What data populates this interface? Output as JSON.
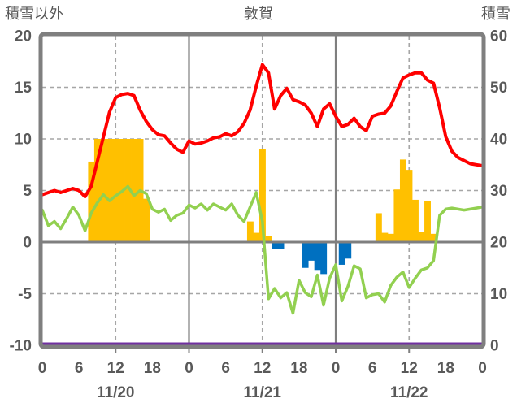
{
  "header": {
    "left_axis_title": "積雪以外",
    "title": "敦賀",
    "right_axis_title": "積雪"
  },
  "chart_data": {
    "type": "line+bar",
    "title": "敦賀",
    "x_unit": "hour",
    "x_range": [
      0,
      72
    ],
    "grid_on": true,
    "hour_tick_hours": [
      0,
      6,
      12,
      18,
      24,
      30,
      36,
      42,
      48,
      54,
      60,
      66,
      72
    ],
    "hour_tick_labels": [
      "0",
      "6",
      "12",
      "18",
      "0",
      "6",
      "12",
      "18",
      "0",
      "6",
      "12",
      "18",
      "0"
    ],
    "day_labels": [
      {
        "hour": 12,
        "label": "11/20"
      },
      {
        "hour": 36,
        "label": "11/21"
      },
      {
        "hour": 60,
        "label": "11/22"
      }
    ],
    "left_axis": {
      "title": "積雪以外",
      "range": [
        -10,
        20
      ],
      "ticks": [
        20,
        15,
        10,
        5,
        0,
        -5,
        -10
      ]
    },
    "right_axis": {
      "title": "積雪",
      "range": [
        0,
        60
      ],
      "ticks": [
        60,
        50,
        40,
        30,
        20,
        10,
        0
      ]
    },
    "gridlines": {
      "h_dashed_values": [
        15,
        10,
        5,
        -5
      ],
      "zero_line_value": 0,
      "v_dashed_hours": [
        12,
        36,
        60
      ],
      "v_solid_hours": [
        24,
        48
      ],
      "bottom_tick_hours": [
        12,
        24,
        36,
        48,
        60
      ]
    },
    "colors": {
      "red_line": "#FF0000",
      "green_line": "#92D050",
      "orange_bars": "#FFC000",
      "blue_bars": "#0070C0",
      "purple_line": "#7030A0",
      "axis": "#7F7F7F",
      "grid": "#A6A6A6",
      "text": "#595959"
    },
    "series": [
      {
        "name": "red-temperature-line",
        "type": "line",
        "axis": "left",
        "color": "#FF0000",
        "width": 4,
        "values": [
          4.6,
          4.8,
          5.0,
          4.8,
          5.0,
          5.2,
          5.0,
          4.4,
          5.4,
          7.8,
          10.2,
          12.6,
          14.0,
          14.3,
          14.4,
          14.2,
          12.8,
          11.7,
          10.9,
          10.4,
          10.3,
          9.6,
          9.0,
          8.7,
          9.8,
          9.5,
          9.6,
          9.8,
          10.1,
          10.2,
          10.5,
          10.3,
          10.7,
          11.5,
          12.8,
          15.1,
          17.2,
          16.4,
          12.9,
          14.2,
          14.9,
          13.8,
          13.6,
          13.3,
          12.5,
          11.2,
          12.9,
          13.4,
          12.2,
          11.2,
          11.4,
          12.0,
          11.2,
          10.8,
          12.2,
          12.4,
          12.5,
          13.2,
          14.6,
          15.9,
          16.2,
          16.4,
          16.4,
          15.7,
          15.4,
          13.0,
          10.2,
          8.8,
          8.2,
          7.9,
          7.6,
          7.5,
          7.4
        ]
      },
      {
        "name": "green-line",
        "type": "line",
        "axis": "left",
        "color": "#92D050",
        "width": 3.5,
        "values": [
          3.1,
          1.6,
          2.0,
          1.3,
          2.3,
          3.4,
          2.6,
          1.1,
          2.8,
          3.8,
          4.6,
          4.0,
          4.5,
          4.9,
          5.4,
          4.5,
          5.0,
          4.7,
          3.2,
          2.9,
          3.2,
          2.1,
          2.6,
          2.8,
          3.6,
          3.3,
          3.7,
          3.1,
          3.7,
          3.4,
          3.1,
          3.7,
          2.6,
          2.0,
          3.4,
          4.8,
          2.0,
          -5.5,
          -4.5,
          -5.4,
          -4.9,
          -6.9,
          -3.7,
          -4.9,
          -5.3,
          -3.2,
          -6.1,
          -3.5,
          -2.2,
          -5.7,
          -4.3,
          -2.3,
          -2.6,
          -5.4,
          -5.1,
          -5.0,
          -5.8,
          -4.2,
          -3.4,
          -2.9,
          -4.4,
          -3.5,
          -2.7,
          -2.5,
          -1.8,
          2.6,
          3.2,
          3.3,
          3.2,
          3.1,
          3.2,
          3.3,
          3.4
        ]
      },
      {
        "name": "orange-bars",
        "type": "bar",
        "axis": "left",
        "color": "#FFC000",
        "bars": [
          [
            8,
            7.8
          ],
          [
            9,
            10
          ],
          [
            10,
            10
          ],
          [
            11,
            10
          ],
          [
            12,
            10
          ],
          [
            13,
            10
          ],
          [
            14,
            10
          ],
          [
            15,
            10
          ],
          [
            16,
            10
          ],
          [
            17,
            4.2
          ],
          [
            34,
            2.0
          ],
          [
            35,
            0.9
          ],
          [
            36,
            9.0
          ],
          [
            37,
            0.6
          ],
          [
            55,
            2.8
          ],
          [
            56,
            0.9
          ],
          [
            57,
            0.8
          ],
          [
            58,
            5.1
          ],
          [
            59,
            8.0
          ],
          [
            60,
            7.0
          ],
          [
            61,
            4.1
          ],
          [
            62,
            1.0
          ],
          [
            63,
            4.0
          ],
          [
            64,
            0.8
          ]
        ]
      },
      {
        "name": "blue-bars",
        "type": "bar",
        "axis": "left",
        "color": "#0070C0",
        "bars": [
          [
            38,
            -0.7
          ],
          [
            39,
            -0.7
          ],
          [
            43,
            -2.5
          ],
          [
            44,
            -1.8
          ],
          [
            45,
            -2.7
          ],
          [
            46,
            -3.1
          ],
          [
            49,
            -2.2
          ],
          [
            50,
            -1.6
          ]
        ]
      },
      {
        "name": "purple-snow-depth-line",
        "type": "constant-line",
        "axis": "right",
        "color": "#7030A0",
        "width": 3,
        "value": 0
      }
    ]
  }
}
